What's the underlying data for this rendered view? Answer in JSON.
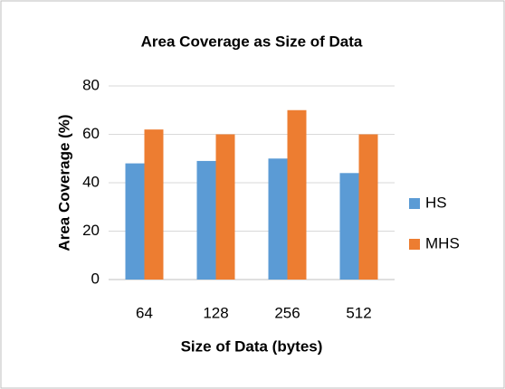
{
  "chart_data": {
    "type": "bar",
    "title": "Area Coverage as Size of Data",
    "x_label": "Size of Data (bytes)",
    "y_label": "Area Coverage (%)",
    "categories": [
      "64",
      "128",
      "256",
      "512"
    ],
    "series": [
      {
        "name": "HS",
        "color": "#5b9bd5",
        "values": [
          48,
          49,
          50,
          44
        ]
      },
      {
        "name": "MHS",
        "color": "#ed7d31",
        "values": [
          62,
          60,
          70,
          60
        ]
      }
    ],
    "ylim": [
      0,
      80
    ],
    "yticks": [
      0,
      20,
      40,
      60,
      80
    ],
    "grid": true,
    "legend": "right"
  }
}
